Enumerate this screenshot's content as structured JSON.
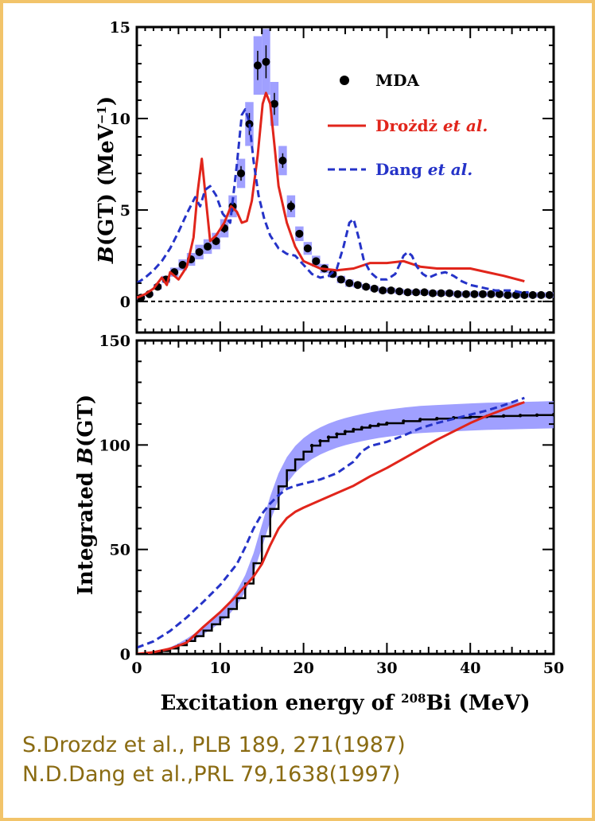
{
  "colors": {
    "frame": "#f2c46a",
    "mda": "#000000",
    "mda_band": "#8f8fff",
    "drozdz": "#e1251b",
    "dang": "#2533c8",
    "citation": "#8a6b12"
  },
  "chart_data": [
    {
      "type": "line",
      "panel": "top",
      "ylabel": {
        "italic": "B",
        "main": "(GT) (MeV",
        "sup": "−1",
        "close": ")"
      },
      "xlim": [
        0,
        50
      ],
      "ylim": [
        -1.7,
        15
      ],
      "yticks": [
        "0",
        "5",
        "10",
        "15"
      ],
      "ytick_values": [
        0,
        5,
        10,
        15
      ],
      "zero_line": true,
      "legend": [
        {
          "series": "MDA",
          "label": "MDA",
          "marker": "dot"
        },
        {
          "series": "Drozdz",
          "label": "Drożdż",
          "label_suffix": "et al.",
          "marker": "solid"
        },
        {
          "series": "Dang",
          "label": "Dang",
          "label_suffix": "et al.",
          "marker": "dashed"
        }
      ],
      "series": [
        {
          "name": "MDA",
          "style": "points-with-error-band",
          "x": [
            0.5,
            1.5,
            2.5,
            3.5,
            4.5,
            5.5,
            6.5,
            7.5,
            8.5,
            9.5,
            10.5,
            11.5,
            12.5,
            13.5,
            14.5,
            15.5,
            16.5,
            17.5,
            18.5,
            19.5,
            20.5,
            21.5,
            22.5,
            23.5,
            24.5,
            25.5,
            26.5,
            27.5,
            28.5,
            29.5,
            30.5,
            31.5,
            32.5,
            33.5,
            34.5,
            35.5,
            36.5,
            37.5,
            38.5,
            39.5,
            40.5,
            41.5,
            42.5,
            43.5,
            44.5,
            45.5,
            46.5,
            47.5,
            48.5,
            49.5
          ],
          "y": [
            0.2,
            0.4,
            0.8,
            1.2,
            1.6,
            2.0,
            2.3,
            2.7,
            3.0,
            3.3,
            4.0,
            5.2,
            7.0,
            9.7,
            12.9,
            13.1,
            10.8,
            7.7,
            5.2,
            3.7,
            2.9,
            2.2,
            1.8,
            1.5,
            1.2,
            1.0,
            0.9,
            0.8,
            0.7,
            0.6,
            0.6,
            0.55,
            0.5,
            0.5,
            0.5,
            0.45,
            0.45,
            0.45,
            0.4,
            0.4,
            0.4,
            0.4,
            0.4,
            0.4,
            0.35,
            0.35,
            0.35,
            0.35,
            0.35,
            0.35
          ],
          "band": [
            0.1,
            0.1,
            0.15,
            0.2,
            0.25,
            0.3,
            0.35,
            0.4,
            0.4,
            0.45,
            0.5,
            0.6,
            0.8,
            1.2,
            1.6,
            1.8,
            1.2,
            0.8,
            0.6,
            0.4,
            0.35,
            0.3,
            0.25,
            0.2,
            0.2,
            0.2,
            0.15,
            0.15,
            0.15,
            0.15,
            0.15,
            0.15,
            0.15,
            0.15,
            0.15,
            0.15,
            0.15,
            0.15,
            0.15,
            0.15,
            0.15,
            0.15,
            0.15,
            0.15,
            0.15,
            0.15,
            0.15,
            0.15,
            0.15,
            0.15
          ]
        },
        {
          "name": "Drozdz",
          "style": "solid",
          "x": [
            0,
            1,
            2,
            3,
            3.6,
            4,
            5,
            6,
            6.8,
            7.3,
            7.8,
            8.3,
            8.8,
            9.5,
            10.5,
            11.3,
            12,
            12.6,
            13.2,
            13.8,
            14.5,
            15.1,
            15.5,
            16,
            16.5,
            17,
            18,
            19,
            20,
            22,
            24,
            26,
            28,
            30,
            32,
            34,
            36,
            38,
            40,
            42,
            44,
            46.5
          ],
          "y": [
            0.2,
            0.4,
            0.7,
            1.3,
            0.9,
            1.6,
            1.2,
            1.9,
            3.5,
            6.0,
            7.8,
            5.5,
            3.3,
            3.6,
            4.3,
            5.2,
            4.9,
            4.3,
            4.4,
            5.5,
            8.0,
            10.8,
            11.4,
            10.8,
            8.6,
            6.3,
            4.3,
            3.0,
            2.2,
            1.8,
            1.7,
            1.8,
            2.1,
            2.1,
            2.2,
            1.9,
            1.8,
            1.8,
            1.8,
            1.6,
            1.4,
            1.1
          ]
        },
        {
          "name": "Dang",
          "style": "dashed",
          "x": [
            0,
            1,
            2,
            3,
            4,
            5,
            6,
            7,
            7.6,
            8.2,
            8.8,
            9.5,
            10.3,
            11.2,
            12,
            12.6,
            13,
            13.5,
            14,
            14.6,
            15.3,
            16,
            17,
            18,
            19,
            20,
            21,
            22,
            23,
            24,
            24.8,
            25.5,
            26,
            26.6,
            27.2,
            28,
            29,
            30,
            31,
            32,
            32.5,
            33,
            33.6,
            34.3,
            35,
            36,
            37,
            38,
            39,
            40,
            41,
            42,
            43,
            44,
            45,
            46,
            47
          ],
          "y": [
            1.0,
            1.3,
            1.7,
            2.2,
            2.9,
            3.8,
            4.8,
            5.7,
            5.2,
            6.1,
            6.3,
            5.8,
            4.8,
            4.3,
            7.5,
            10.2,
            10.5,
            9.8,
            7.7,
            5.8,
            4.5,
            3.6,
            2.9,
            2.6,
            2.5,
            2.0,
            1.5,
            1.3,
            1.4,
            1.8,
            3.0,
            4.3,
            4.5,
            3.5,
            2.3,
            1.6,
            1.2,
            1.2,
            1.5,
            2.5,
            2.7,
            2.5,
            1.9,
            1.5,
            1.3,
            1.5,
            1.6,
            1.4,
            1.1,
            0.9,
            0.8,
            0.7,
            0.6,
            0.6,
            0.6,
            0.5,
            0.5
          ]
        }
      ]
    },
    {
      "type": "line",
      "panel": "bottom",
      "ylabel": {
        "main": "Integrated ",
        "italic": "B",
        "close": "(GT)"
      },
      "xlabel": {
        "main": "Excitation energy of ",
        "sup": "208",
        "element": "Bi",
        "unit": " (MeV)"
      },
      "xlim": [
        0,
        50
      ],
      "ylim": [
        0,
        150
      ],
      "xticks": [
        "0",
        "10",
        "20",
        "30",
        "40",
        "50"
      ],
      "xtick_values": [
        0,
        10,
        20,
        30,
        40,
        50
      ],
      "yticks": [
        "0",
        "50",
        "100",
        "150"
      ],
      "ytick_values": [
        0,
        50,
        100,
        150
      ],
      "series": [
        {
          "name": "MDA",
          "style": "step-with-error-band",
          "x": [
            0,
            1,
            2,
            3,
            4,
            5,
            6,
            7,
            8,
            9,
            10,
            11,
            12,
            13,
            14,
            15,
            16,
            17,
            18,
            19,
            20,
            21,
            22,
            23,
            24,
            25,
            26,
            27,
            28,
            29,
            30,
            32,
            34,
            36,
            38,
            40,
            42,
            44,
            46,
            48,
            50
          ],
          "y": [
            0,
            0.2,
            0.6,
            1.4,
            2.6,
            4.2,
            6.2,
            8.5,
            11.2,
            14.2,
            17.5,
            21.5,
            26.7,
            33.7,
            43.4,
            56.3,
            69.4,
            80.2,
            87.9,
            93.1,
            96.8,
            99.7,
            101.9,
            103.7,
            105.2,
            106.4,
            107.4,
            108.3,
            109.1,
            109.8,
            110.4,
            111.4,
            112.2,
            112.6,
            113.0,
            113.4,
            113.7,
            113.9,
            114.1,
            114.3,
            114.5
          ],
          "band": [
            0,
            0.1,
            0.2,
            0.4,
            0.6,
            0.9,
            1.2,
            1.5,
            1.8,
            2.2,
            2.6,
            3.0,
            3.5,
            4.0,
            4.8,
            5.5,
            6.0,
            6.2,
            6.3,
            6.4,
            6.5,
            6.5,
            6.5,
            6.5,
            6.5,
            6.5,
            6.5,
            6.5,
            6.5,
            6.5,
            6.5,
            6.5,
            6.5,
            6.5,
            6.5,
            6.5,
            6.5,
            6.5,
            6.5,
            6.5,
            6.5
          ]
        },
        {
          "name": "Drozdz",
          "style": "solid",
          "x": [
            0,
            2,
            4,
            6,
            8,
            10,
            12,
            14,
            15,
            16,
            17,
            18,
            19,
            20,
            22,
            24,
            26,
            28,
            30,
            32,
            34,
            36,
            38,
            40,
            42,
            44,
            46.5
          ],
          "y": [
            0,
            0.8,
            2.5,
            5.5,
            13,
            20,
            28,
            37,
            43,
            52,
            60,
            65,
            68,
            70,
            73.5,
            77,
            80.5,
            85,
            89,
            93.5,
            98,
            102.5,
            106.5,
            110.5,
            114,
            117,
            120.5
          ]
        },
        {
          "name": "Dang",
          "style": "dashed",
          "x": [
            0,
            2,
            4,
            6,
            8,
            10,
            12,
            13,
            14,
            15,
            16,
            17,
            18,
            19,
            20,
            22,
            24,
            26,
            27,
            28,
            30,
            32,
            34,
            36,
            38,
            40,
            42,
            44,
            46.5
          ],
          "y": [
            3,
            6,
            11,
            17.5,
            25,
            33,
            43,
            51,
            60,
            67,
            72,
            76,
            79,
            80.5,
            81.5,
            83.5,
            86.5,
            92,
            97,
            99.5,
            101.5,
            104.5,
            108,
            110.5,
            112.5,
            114.5,
            116.5,
            119,
            122.5
          ]
        }
      ]
    }
  ],
  "citations": [
    "S.Drozdz et al., PLB 189, 271(1987)",
    "N.D.Dang et al.,PRL 79,1638(1997)"
  ]
}
